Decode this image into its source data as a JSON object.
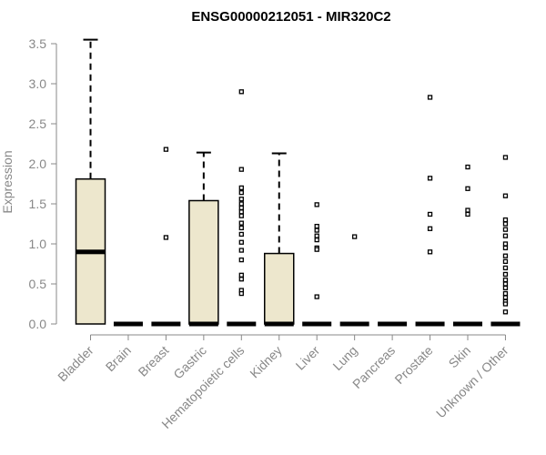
{
  "chart_data": {
    "type": "box",
    "title": "ENSG00000212051 - MIR320C2",
    "xlabel": "",
    "ylabel": "Expression",
    "ylim": [
      0,
      3.6
    ],
    "yticks": [
      "0.0",
      "0.5",
      "1.0",
      "1.5",
      "2.0",
      "2.5",
      "3.0",
      "3.5"
    ],
    "box_fill": "#ede7cd",
    "categories": [
      "Bladder",
      "Brain",
      "Breast",
      "Gastric",
      "Hematopoietic cells",
      "Kidney",
      "Liver",
      "Lung",
      "Pancreas",
      "Prostate",
      "Skin",
      "Unknown / Other"
    ],
    "boxes": [
      {
        "min": 0,
        "q1": 0,
        "median": 0.9,
        "q3": 1.81,
        "max": 3.55,
        "outliers": []
      },
      {
        "min": 0,
        "q1": 0,
        "median": 0,
        "q3": 0,
        "max": 0,
        "outliers": []
      },
      {
        "min": 0,
        "q1": 0,
        "median": 0,
        "q3": 0,
        "max": 0,
        "outliers": [
          2.18,
          1.08
        ]
      },
      {
        "min": 0,
        "q1": 0,
        "median": 0,
        "q3": 1.54,
        "max": 2.14,
        "outliers": []
      },
      {
        "min": 0,
        "q1": 0,
        "median": 0,
        "q3": 0,
        "max": 0,
        "outliers": [
          2.9,
          1.93,
          1.7,
          1.64,
          1.56,
          1.5,
          1.45,
          1.4,
          1.35,
          1.26,
          1.2,
          1.12,
          1.02,
          0.92,
          0.8,
          0.61,
          0.56,
          0.42,
          0.38
        ]
      },
      {
        "min": 0,
        "q1": 0,
        "median": 0,
        "q3": 0.88,
        "max": 2.13,
        "outliers": []
      },
      {
        "min": 0,
        "q1": 0,
        "median": 0,
        "q3": 0,
        "max": 0,
        "outliers": [
          1.49,
          1.22,
          1.17,
          1.1,
          1.05,
          0.95,
          0.93,
          0.34
        ]
      },
      {
        "min": 0,
        "q1": 0,
        "median": 0,
        "q3": 0,
        "max": 0,
        "outliers": [
          1.09
        ]
      },
      {
        "min": 0,
        "q1": 0,
        "median": 0,
        "q3": 0,
        "max": 0,
        "outliers": []
      },
      {
        "min": 0,
        "q1": 0,
        "median": 0,
        "q3": 0,
        "max": 0,
        "outliers": [
          2.83,
          1.82,
          1.37,
          1.19,
          0.9
        ]
      },
      {
        "min": 0,
        "q1": 0,
        "median": 0,
        "q3": 0,
        "max": 0,
        "outliers": [
          1.96,
          1.69,
          1.42,
          1.37
        ]
      },
      {
        "min": 0,
        "q1": 0,
        "median": 0,
        "q3": 0,
        "max": 0,
        "outliers": [
          2.08,
          1.6,
          1.3,
          1.25,
          1.18,
          1.1,
          1.0,
          0.95,
          0.85,
          0.78,
          0.7,
          0.62,
          0.55,
          0.5,
          0.45,
          0.38,
          0.33,
          0.28,
          0.25,
          0.15
        ]
      }
    ]
  }
}
